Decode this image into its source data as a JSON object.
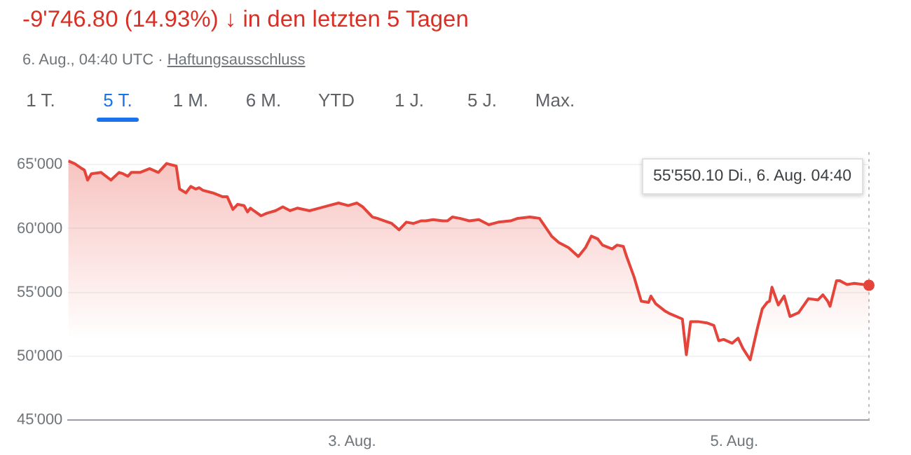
{
  "chart_data": {
    "type": "area",
    "title": "-9'746.80 (14.93%) ↓ in den letzten 5 Tagen",
    "subtitle": "6. Aug., 04:40 UTC · Haftungsausschluss",
    "annotations": [
      "55'550.10  Di., 6. Aug. 04:40",
      "1 T.",
      "5 T.",
      "1 M.",
      "6 M.",
      "YTD",
      "1 J.",
      "5 J.",
      "Max."
    ],
    "x": [
      "--08-01T12:21",
      "--08-01T13:08",
      "--08-01T14:04",
      "--08-01T14:22",
      "--08-01T14:47",
      "--08-01T15:16",
      "--08-01T16:29",
      "--08-01T17:43",
      "--08-01T18:44",
      "--08-01T19:14",
      "--08-01T19:50",
      "--08-01T20:16",
      "--08-01T21:22",
      "--08-01T22:34",
      "--08-01T23:40",
      "--08-02T00:42",
      "--08-02T01:55",
      "--08-02T02:20",
      "--08-02T03:08",
      "--08-02T03:44",
      "--08-02T04:21",
      "--08-02T04:47",
      "--08-02T05:16",
      "--08-02T06:29",
      "--08-02T07:42",
      "--08-02T08:19",
      "--08-02T09:02",
      "--08-02T09:38",
      "--08-02T10:26",
      "--08-02T10:52",
      "--08-02T11:14",
      "--08-02T11:39",
      "--08-02T12:34",
      "--08-02T13:17",
      "--08-02T14:23",
      "--08-02T15:18",
      "--08-02T16:13",
      "--08-02T17:07",
      "--08-02T18:39",
      "--08-02T19:52",
      "--08-02T21:05",
      "--08-02T22:18",
      "--08-02T23:31",
      "--08-03T00:37",
      "--08-03T01:20",
      "--08-03T02:34",
      "--08-03T03:10",
      "--08-03T04:05",
      "--08-03T04:59",
      "--08-03T05:54",
      "--08-03T06:49",
      "--08-03T07:44",
      "--08-03T08:38",
      "--08-03T09:15",
      "--08-03T10:10",
      "--08-03T11:23",
      "--08-03T11:59",
      "--08-03T12:35",
      "--08-03T13:31",
      "--08-03T14:43",
      "--08-03T15:56",
      "--08-03T17:10",
      "--08-03T18:22",
      "--08-03T19:53",
      "--08-03T20:49",
      "--08-03T22:20",
      "--08-03T23:32",
      "--08-04T01:04",
      "--08-04T01:58",
      "--08-04T03:11",
      "--08-04T04:25",
      "--08-04T05:19",
      "--08-04T06:03",
      "--08-04T06:50",
      "--08-04T07:27",
      "--08-04T08:40",
      "--08-04T09:17",
      "--08-04T10:04",
      "--08-04T10:29",
      "--08-04T11:25",
      "--08-04T12:19",
      "--08-04T13:14",
      "--08-04T13:32",
      "--08-04T14:08",
      "--08-04T14:45",
      "--08-04T15:22",
      "--08-04T15:58",
      "--08-04T17:29",
      "--08-04T17:59",
      "--08-04T18:31",
      "--08-04T19:26",
      "--08-04T20:32",
      "--08-04T21:26",
      "--08-04T22:03",
      "--08-04T22:40",
      "--08-04T23:45",
      "--08-05T00:29",
      "--08-05T01:05",
      "--08-05T02:00",
      "--08-05T02:55",
      "--08-05T03:31",
      "--08-05T04:08",
      "--08-05T04:26",
      "--08-05T04:44",
      "--08-05T05:32",
      "--08-05T06:16",
      "--08-05T07:00",
      "--08-05T08:05",
      "--08-05T09:19",
      "--08-05T10:31",
      "--08-05T11:08",
      "--08-05T11:44",
      "--08-05T12:02",
      "--08-05T12:50",
      "--08-05T13:16",
      "--08-05T14:10",
      "--08-05T15:05",
      "--08-05T16:55"
    ],
    "series": [
      {
        "color": "#e5443a",
        "values": [
          65300,
          65100,
          64700,
          64600,
          63800,
          64300,
          64400,
          63800,
          64400,
          64300,
          64100,
          64400,
          64400,
          64700,
          64400,
          65100,
          64900,
          63100,
          62800,
          63300,
          63100,
          63200,
          63000,
          62800,
          62500,
          62500,
          61500,
          61900,
          61800,
          61300,
          61600,
          61400,
          61000,
          61200,
          61400,
          61700,
          61400,
          61600,
          61400,
          61600,
          61800,
          62000,
          61800,
          62000,
          61700,
          60900,
          60800,
          60600,
          60400,
          59900,
          60500,
          60400,
          60600,
          60600,
          60700,
          60600,
          60600,
          60900,
          60800,
          60600,
          60700,
          60300,
          60500,
          60600,
          60800,
          60900,
          60800,
          59400,
          58900,
          58500,
          57800,
          58500,
          59400,
          59200,
          58700,
          58400,
          58700,
          58600,
          57800,
          56200,
          54300,
          54200,
          54700,
          54100,
          53800,
          53500,
          53300,
          52900,
          50100,
          52700,
          52700,
          52600,
          52400,
          51200,
          51300,
          51000,
          51400,
          50600,
          49700,
          52200,
          53700,
          54200,
          54300,
          55400,
          54000,
          54700,
          53100,
          53400,
          54500,
          54400,
          54800,
          54300,
          53900,
          55900,
          55900,
          55600,
          55700,
          55550.1
        ]
      }
    ],
    "xlim": [
      "--08-01T12:21",
      "--08-05T16:55"
    ],
    "xticks": [
      {
        "value": "--08-03T00:00",
        "label": "3. Aug."
      },
      {
        "value": "--08-05T00:00",
        "label": "5. Aug."
      }
    ],
    "ylim": [
      45000,
      66000
    ],
    "yticks": [
      {
        "value": 45000,
        "label": "45'000"
      },
      {
        "value": 50000,
        "label": "50'000"
      },
      {
        "value": 55000,
        "label": "55'000"
      },
      {
        "value": 60000,
        "label": "60'000"
      },
      {
        "value": 65000,
        "label": "65'000"
      }
    ],
    "ref_lines": [
      {
        "axis": "x",
        "value": "--08-05T16:55",
        "color": "#bdbdbd",
        "line_style": "dotted"
      }
    ],
    "grid": "y",
    "legend": false,
    "marker": "none"
  }
}
